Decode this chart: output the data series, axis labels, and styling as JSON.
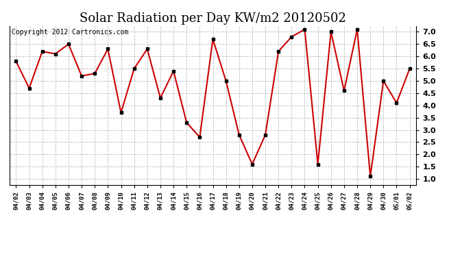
{
  "title": "Solar Radiation per Day KW/m2 20120502",
  "copyright": "Copyright 2012 Cartronics.com",
  "dates": [
    "04/02",
    "04/03",
    "04/04",
    "04/05",
    "04/06",
    "04/07",
    "04/08",
    "04/09",
    "04/10",
    "04/11",
    "04/12",
    "04/13",
    "04/14",
    "04/15",
    "04/16",
    "04/17",
    "04/18",
    "04/19",
    "04/20",
    "04/21",
    "04/22",
    "04/23",
    "04/24",
    "04/25",
    "04/26",
    "04/27",
    "04/28",
    "04/29",
    "04/30",
    "05/01",
    "05/02"
  ],
  "values": [
    5.8,
    4.7,
    6.2,
    6.1,
    6.5,
    5.2,
    5.3,
    6.3,
    3.7,
    5.5,
    6.3,
    4.3,
    5.4,
    3.3,
    2.7,
    6.7,
    5.0,
    2.8,
    1.6,
    2.8,
    6.2,
    6.8,
    7.1,
    1.6,
    7.0,
    4.6,
    7.1,
    1.1,
    5.0,
    4.1,
    5.5
  ],
  "line_color": "#cc0000",
  "marker_color": "#000000",
  "bg_color": "#ffffff",
  "grid_color": "#bbbbbb",
  "ylim": [
    0.75,
    7.25
  ],
  "yticks": [
    1.0,
    1.5,
    2.0,
    2.5,
    3.0,
    3.5,
    4.0,
    4.5,
    5.0,
    5.5,
    6.0,
    6.5,
    7.0
  ],
  "title_fontsize": 13,
  "copyright_fontsize": 7
}
